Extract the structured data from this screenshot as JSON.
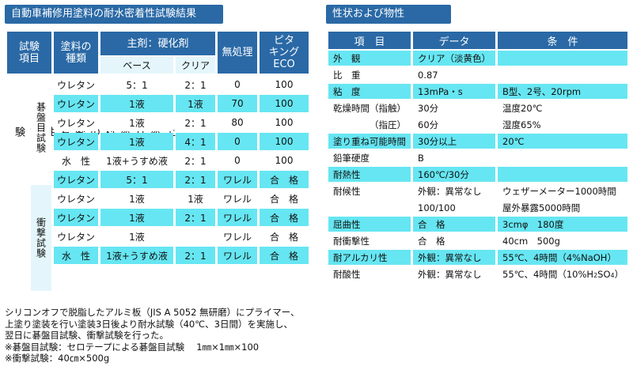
{
  "left": {
    "title": "自動車補修用塗料の耐水密着性試験結果",
    "headers": {
      "test_item": "試験\n項目",
      "paint_type": "塗料の\n種類",
      "main_hardener": "主剤：硬化剤",
      "base": "ベース",
      "clear": "クリア",
      "untreated": "無処理",
      "pitaking": "ピタ\nキング\nECO"
    },
    "outer_label": "上塗り塗料の密着性試験",
    "group1_label": "碁盤目試験",
    "group2_label": "衝撃試験",
    "rows": [
      {
        "type": "ウレタン",
        "base": "5：1",
        "clear": "2：1",
        "untreated": "0",
        "pita": "100"
      },
      {
        "type": "ウレタン",
        "base": "1液",
        "clear": "1液",
        "untreated": "70",
        "pita": "100"
      },
      {
        "type": "ウレタン",
        "base": "1液",
        "clear": "2：1",
        "untreated": "80",
        "pita": "100"
      },
      {
        "type": "ウレタン",
        "base": "1液",
        "clear": "4：1",
        "untreated": "0",
        "pita": "100"
      },
      {
        "type": "水　性",
        "base": "1液+うすめ液",
        "clear": "2：1",
        "untreated": "0",
        "pita": "100"
      },
      {
        "type": "ウレタン",
        "base": "5：1",
        "clear": "2：1",
        "untreated": "ワレル",
        "pita": "合　格"
      },
      {
        "type": "ウレタン",
        "base": "1液",
        "clear": "1液",
        "untreated": "ワレル",
        "pita": "合　格"
      },
      {
        "type": "ウレタン",
        "base": "1液",
        "clear": "2：1",
        "untreated": "ワレル",
        "pita": "合　格"
      },
      {
        "type": "ウレタン",
        "base": "1液",
        "clear": "",
        "untreated": "ワレル",
        "pita": "合　格"
      },
      {
        "type": "水　性",
        "base": "1液+うすめ液",
        "clear": "2：1",
        "untreated": "ワレル",
        "pita": "合　格"
      }
    ],
    "notes": "シリコンオフで脱脂したアルミ板（JIS A 5052 無研磨）にプライマー、\n上塗り塗装を行い塗装3日後より耐水試験（40℃、3日間）を実施し、\n翌日に碁盤目試験、衝撃試験を行った。\n※碁盤目試験：セロテープによる碁盤目試験　 1㎜×1㎜×100\n※衝撃試験：40㎝×500g"
  },
  "right": {
    "title": "性状および物性",
    "headers": {
      "item": "項　目",
      "data": "データ",
      "condition": "条　件"
    },
    "rows": [
      {
        "item": "外　観",
        "data": "クリア（淡黄色）",
        "cond": ""
      },
      {
        "item": "比　重",
        "data": "0.87",
        "cond": ""
      },
      {
        "item": "粘　度",
        "data": "13mPa・s",
        "cond": "B型、2号、20rpm"
      },
      {
        "item": "乾燥時間（指触）",
        "data": "30分",
        "cond": "温度20℃"
      },
      {
        "item": "（指圧）",
        "data": "60分",
        "cond": "湿度65%"
      },
      {
        "item": "塗り重ね可能時間",
        "data": "30分以上",
        "cond": "20℃"
      },
      {
        "item": "鉛筆硬度",
        "data": "B",
        "cond": ""
      },
      {
        "item": "耐熱性",
        "data": "160℃/30分",
        "cond": ""
      },
      {
        "item": "耐候性",
        "data": "外観：異常なし",
        "cond": "ウェザーメーター1000時間"
      },
      {
        "item": "",
        "data": "100/100",
        "cond": "屋外暴露5000時間"
      },
      {
        "item": "屈曲性",
        "data": "合　格",
        "cond": "3cmφ　180度"
      },
      {
        "item": "耐衝撃性",
        "data": "合　格",
        "cond": "40cm　500g"
      },
      {
        "item": "耐アルカリ性",
        "data": "外観：異常なし",
        "cond": "55℃、4時間（4%NaOH）"
      },
      {
        "item": "耐酸性",
        "data": "外観：異常なし",
        "cond": "55℃、4時間（10%H",
        "cond_sub": "2",
        "cond_tail": "SO",
        "cond_sub2": "4",
        "cond_end": "）"
      }
    ]
  }
}
